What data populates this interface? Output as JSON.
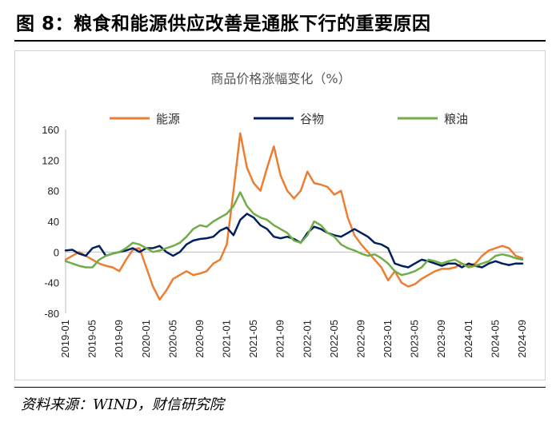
{
  "figure": {
    "title": "图 8：粮食和能源供应改善是通胀下行的重要原因",
    "source": "资料来源：WIND，财信研究院"
  },
  "chart_data": {
    "type": "line",
    "title": "商品价格涨幅变化（%）",
    "xlabel": "",
    "ylabel": "",
    "ylim": [
      -80,
      160
    ],
    "yticks": [
      -80,
      -40,
      0,
      40,
      80,
      120,
      160
    ],
    "grid": false,
    "legend_position": "top",
    "x": [
      "2019-01",
      "2019-02",
      "2019-03",
      "2019-04",
      "2019-05",
      "2019-06",
      "2019-07",
      "2019-08",
      "2019-09",
      "2019-10",
      "2019-11",
      "2019-12",
      "2020-01",
      "2020-02",
      "2020-03",
      "2020-04",
      "2020-05",
      "2020-06",
      "2020-07",
      "2020-08",
      "2020-09",
      "2020-10",
      "2020-11",
      "2020-12",
      "2021-01",
      "2021-02",
      "2021-03",
      "2021-04",
      "2021-05",
      "2021-06",
      "2021-07",
      "2021-08",
      "2021-09",
      "2021-10",
      "2021-11",
      "2021-12",
      "2022-01",
      "2022-02",
      "2022-03",
      "2022-04",
      "2022-05",
      "2022-06",
      "2022-07",
      "2022-08",
      "2022-09",
      "2022-10",
      "2022-11",
      "2022-12",
      "2023-01",
      "2023-02",
      "2023-03",
      "2023-04",
      "2023-05",
      "2023-06",
      "2023-07",
      "2023-08",
      "2023-09",
      "2023-10",
      "2023-11",
      "2023-12",
      "2024-01",
      "2024-02",
      "2024-03",
      "2024-04",
      "2024-05",
      "2024-06",
      "2024-07",
      "2024-08",
      "2024-09"
    ],
    "xticks": [
      "2019-01",
      "2019-05",
      "2019-09",
      "2020-01",
      "2020-05",
      "2020-09",
      "2021-01",
      "2021-05",
      "2021-09",
      "2022-01",
      "2022-05",
      "2022-09",
      "2023-01",
      "2023-05",
      "2023-09",
      "2024-01",
      "2024-05",
      "2024-09"
    ],
    "series": [
      {
        "name": "能源",
        "color": "#ED7D31",
        "values": [
          -10,
          -5,
          0,
          -5,
          -10,
          -15,
          -18,
          -20,
          -25,
          -10,
          3,
          5,
          -20,
          -45,
          -62,
          -50,
          -35,
          -30,
          -25,
          -30,
          -28,
          -25,
          -15,
          -10,
          10,
          80,
          155,
          110,
          90,
          80,
          110,
          138,
          100,
          80,
          70,
          80,
          105,
          90,
          88,
          85,
          75,
          80,
          45,
          22,
          10,
          0,
          -10,
          -20,
          -37,
          -25,
          -40,
          -45,
          -42,
          -35,
          -30,
          -25,
          -22,
          -22,
          -20,
          -15,
          -18,
          -15,
          -5,
          2,
          5,
          8,
          5,
          -5,
          -8
        ]
      },
      {
        "name": "谷物",
        "color": "#002060",
        "values": [
          2,
          3,
          -2,
          -5,
          5,
          8,
          -5,
          -2,
          0,
          2,
          5,
          0,
          5,
          5,
          8,
          0,
          -5,
          0,
          10,
          15,
          17,
          18,
          20,
          28,
          32,
          22,
          42,
          50,
          45,
          35,
          30,
          20,
          18,
          20,
          17,
          12,
          25,
          33,
          30,
          25,
          22,
          20,
          25,
          30,
          25,
          20,
          12,
          10,
          5,
          -15,
          -18,
          -20,
          -15,
          -10,
          -12,
          -15,
          -18,
          -15,
          -15,
          -20,
          -15,
          -18,
          -20,
          -15,
          -12,
          -15,
          -17,
          -15,
          -15
        ]
      },
      {
        "name": "粮油",
        "color": "#70AD47",
        "values": [
          -12,
          -15,
          -18,
          -20,
          -20,
          -10,
          -5,
          -2,
          0,
          5,
          12,
          10,
          5,
          0,
          2,
          5,
          8,
          12,
          20,
          30,
          35,
          33,
          40,
          45,
          50,
          60,
          78,
          60,
          50,
          45,
          42,
          35,
          30,
          25,
          15,
          12,
          22,
          40,
          35,
          25,
          20,
          10,
          5,
          2,
          -2,
          -5,
          -3,
          -8,
          -15,
          -25,
          -30,
          -28,
          -25,
          -20,
          -10,
          -12,
          -15,
          -12,
          -10,
          -15,
          -20,
          -18,
          -15,
          -12,
          -5,
          -3,
          -5,
          -8,
          -10
        ]
      }
    ]
  }
}
